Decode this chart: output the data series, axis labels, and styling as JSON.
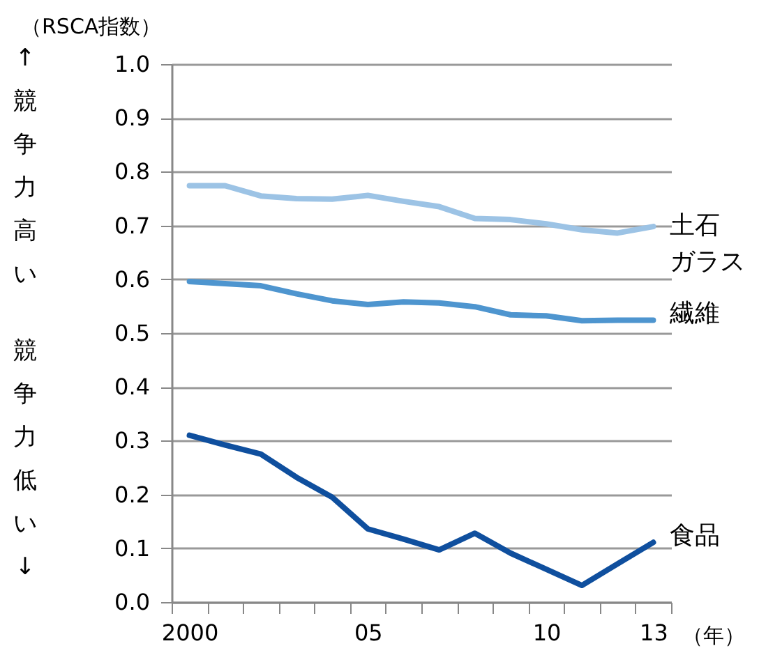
{
  "chart_data": {
    "type": "line",
    "ylabel": "（RSCA指数）",
    "xlabel": "（年）",
    "annotations": [
      "↑競争力高い",
      "競争力低い↓"
    ],
    "categories": [
      "2000",
      null,
      null,
      null,
      null,
      "05",
      null,
      null,
      null,
      null,
      "10",
      null,
      null,
      "13"
    ],
    "ylim": [
      0,
      1
    ],
    "yticks": [
      {
        "value": 0,
        "label": "0.0"
      },
      {
        "value": 0.1,
        "label": "0.1"
      },
      {
        "value": 0.2,
        "label": "0.2"
      },
      {
        "value": 0.3,
        "label": "0.3"
      },
      {
        "value": 0.4,
        "label": "0.4"
      },
      {
        "value": 0.5,
        "label": "0.5"
      },
      {
        "value": 0.6,
        "label": "0.6"
      },
      {
        "value": 0.7,
        "label": "0.7"
      },
      {
        "value": 0.8,
        "label": "0.8"
      },
      {
        "value": 0.9,
        "label": "0.9"
      },
      {
        "value": 1,
        "label": "1.0"
      }
    ],
    "grid": "y",
    "legend": false,
    "line_style": "solid",
    "series": [
      {
        "name": "土石ガラス",
        "color": "#9cc3e5",
        "values": [
          0.774,
          0.774,
          0.755,
          0.75,
          0.749,
          0.756,
          0.745,
          0.735,
          0.713,
          0.711,
          0.703,
          0.692,
          0.686,
          0.698
        ]
      },
      {
        "name": "繊維",
        "color": "#4e95cf",
        "values": [
          0.596,
          0.592,
          0.588,
          0.573,
          0.56,
          0.553,
          0.558,
          0.556,
          0.549,
          0.534,
          0.532,
          0.523,
          0.524,
          0.524
        ]
      },
      {
        "name": "食品",
        "color": "#0f4f9e",
        "values": [
          0.31,
          0.292,
          0.275,
          0.232,
          0.195,
          0.136,
          0.117,
          0.097,
          0.128,
          0.091,
          0.061,
          0.031,
          0.071,
          0.111
        ]
      }
    ]
  }
}
